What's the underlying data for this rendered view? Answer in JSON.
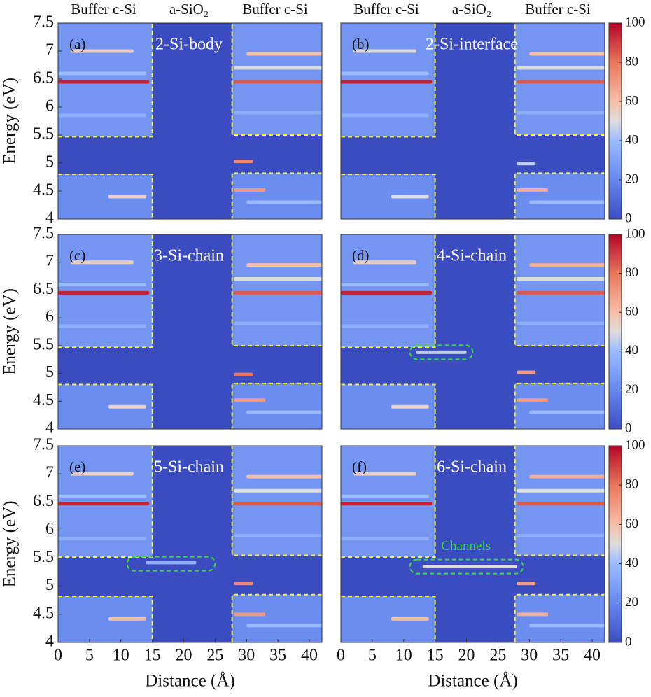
{
  "colormap": [
    [
      0,
      "#3b4cc0"
    ],
    [
      20,
      "#6788ee"
    ],
    [
      40,
      "#9abbff"
    ],
    [
      50,
      "#dddcdc"
    ],
    [
      60,
      "#f6bfa6"
    ],
    [
      80,
      "#e8765c"
    ],
    [
      100,
      "#b40426"
    ]
  ],
  "chart_data": [
    {
      "type": "heatmap",
      "title": "2-Si-body",
      "panel_label": "(a)",
      "top_labels": [
        "Buffer c-Si",
        "a-SiO₂",
        "Buffer c-Si"
      ],
      "ylabel": "Energy (eV)",
      "xlim": [
        0,
        42
      ],
      "ylim": [
        4,
        7.5
      ],
      "yticks": [
        4,
        4.5,
        5,
        5.5,
        6,
        6.5,
        7,
        7.5
      ],
      "background": 0,
      "regions": [
        [
          0,
          15,
          5.47,
          7.5,
          25
        ],
        [
          0,
          15,
          4,
          4.8,
          22
        ],
        [
          27.7,
          42,
          5.5,
          7.5,
          25
        ],
        [
          27.7,
          42,
          4,
          4.82,
          22
        ]
      ],
      "streaks": [
        [
          0,
          14.5,
          6.45,
          95
        ],
        [
          28,
          42,
          6.45,
          85
        ],
        [
          2,
          12,
          7.0,
          55
        ],
        [
          30,
          42,
          6.95,
          60
        ],
        [
          0,
          14,
          6.6,
          40
        ],
        [
          28,
          42,
          6.7,
          50
        ],
        [
          0,
          14,
          5.85,
          35
        ],
        [
          28,
          42,
          5.9,
          35
        ],
        [
          28,
          31,
          5.03,
          75
        ],
        [
          28,
          33,
          4.52,
          70
        ],
        [
          8,
          14,
          4.4,
          55
        ],
        [
          30,
          42,
          4.3,
          40
        ]
      ],
      "dashed_lines": [
        {
          "x": [
            0,
            15,
            15
          ],
          "y": [
            5.47,
            5.47,
            7.5
          ]
        },
        {
          "x": [
            0,
            15,
            15
          ],
          "y": [
            4.8,
            4.8,
            4
          ]
        },
        {
          "x": [
            42,
            27.7,
            27.7
          ],
          "y": [
            5.5,
            5.5,
            7.5
          ]
        },
        {
          "x": [
            42,
            27.7,
            27.7
          ],
          "y": [
            4.82,
            4.82,
            4
          ]
        }
      ]
    },
    {
      "type": "heatmap",
      "title": "2-Si-interface",
      "panel_label": "(b)",
      "top_labels": [
        "Buffer c-Si",
        "a-SiO₂",
        "Buffer c-Si"
      ],
      "xlim": [
        0,
        42
      ],
      "ylim": [
        4,
        7.5
      ],
      "background": 0,
      "clim": [
        0,
        100
      ],
      "cticks": [
        0,
        20,
        40,
        60,
        80,
        100
      ],
      "regions": [
        [
          0,
          15,
          5.47,
          7.5,
          25
        ],
        [
          0,
          15,
          4,
          4.8,
          22
        ],
        [
          27.7,
          42,
          5.5,
          7.5,
          25
        ],
        [
          27.7,
          42,
          4,
          4.82,
          22
        ]
      ],
      "streaks": [
        [
          0,
          14.5,
          6.45,
          95
        ],
        [
          28,
          42,
          6.45,
          85
        ],
        [
          2,
          12,
          7.0,
          50
        ],
        [
          30,
          42,
          6.95,
          60
        ],
        [
          0,
          14,
          6.6,
          40
        ],
        [
          28,
          42,
          6.7,
          50
        ],
        [
          0,
          14,
          5.85,
          35
        ],
        [
          28,
          42,
          5.9,
          35
        ],
        [
          28,
          31,
          4.99,
          45
        ],
        [
          28,
          33,
          4.52,
          65
        ],
        [
          8,
          14,
          4.4,
          50
        ],
        [
          30,
          42,
          4.3,
          40
        ]
      ],
      "dashed_lines": [
        {
          "x": [
            0,
            15,
            15
          ],
          "y": [
            5.47,
            5.47,
            7.5
          ]
        },
        {
          "x": [
            0,
            15,
            15
          ],
          "y": [
            4.8,
            4.8,
            4
          ]
        },
        {
          "x": [
            42,
            27.7,
            27.7
          ],
          "y": [
            5.5,
            5.5,
            7.5
          ]
        },
        {
          "x": [
            42,
            27.7,
            27.7
          ],
          "y": [
            4.82,
            4.82,
            4
          ]
        }
      ]
    },
    {
      "type": "heatmap",
      "title": "3-Si-chain",
      "panel_label": "(c)",
      "ylabel": "Energy (eV)",
      "xlim": [
        0,
        42
      ],
      "ylim": [
        4,
        7.5
      ],
      "yticks": [
        4,
        4.5,
        5,
        5.5,
        6,
        6.5,
        7,
        7.5
      ],
      "background": 0,
      "regions": [
        [
          0,
          15,
          5.47,
          7.5,
          25
        ],
        [
          0,
          15,
          4,
          4.8,
          22
        ],
        [
          27.7,
          42,
          5.5,
          7.5,
          25
        ],
        [
          27.7,
          42,
          4,
          4.82,
          22
        ]
      ],
      "streaks": [
        [
          0,
          14.5,
          6.45,
          95
        ],
        [
          28,
          42,
          6.45,
          85
        ],
        [
          2,
          12,
          7.0,
          55
        ],
        [
          30,
          42,
          6.95,
          60
        ],
        [
          0,
          14,
          6.6,
          40
        ],
        [
          28,
          42,
          6.7,
          50
        ],
        [
          0,
          14,
          5.85,
          35
        ],
        [
          28,
          42,
          5.9,
          35
        ],
        [
          28,
          31,
          4.98,
          80
        ],
        [
          28,
          33,
          4.52,
          70
        ],
        [
          8,
          14,
          4.4,
          55
        ],
        [
          30,
          42,
          4.3,
          40
        ]
      ],
      "dashed_lines": [
        {
          "x": [
            0,
            15,
            15
          ],
          "y": [
            5.47,
            5.47,
            7.5
          ]
        },
        {
          "x": [
            0,
            15,
            15
          ],
          "y": [
            4.8,
            4.8,
            4
          ]
        },
        {
          "x": [
            42,
            27.7,
            27.7
          ],
          "y": [
            5.5,
            5.5,
            7.5
          ]
        },
        {
          "x": [
            42,
            27.7,
            27.7
          ],
          "y": [
            4.82,
            4.82,
            4
          ]
        }
      ]
    },
    {
      "type": "heatmap",
      "title": "4-Si-chain",
      "panel_label": "(d)",
      "xlim": [
        0,
        42
      ],
      "ylim": [
        4,
        7.5
      ],
      "background": 0,
      "clim": [
        0,
        100
      ],
      "cticks": [
        0,
        20,
        40,
        60,
        80,
        100
      ],
      "regions": [
        [
          0,
          15,
          5.47,
          7.5,
          25
        ],
        [
          0,
          15,
          4,
          4.8,
          22
        ],
        [
          27.7,
          42,
          5.5,
          7.5,
          25
        ],
        [
          27.7,
          42,
          4,
          4.82,
          22
        ]
      ],
      "streaks": [
        [
          0,
          14.5,
          6.45,
          95
        ],
        [
          28,
          42,
          6.45,
          85
        ],
        [
          2,
          12,
          7.0,
          55
        ],
        [
          30,
          42,
          6.95,
          65
        ],
        [
          0,
          14,
          6.6,
          40
        ],
        [
          28,
          42,
          6.7,
          50
        ],
        [
          0,
          14,
          5.85,
          35
        ],
        [
          28,
          42,
          5.9,
          35
        ],
        [
          28,
          31,
          5.02,
          70
        ],
        [
          28,
          33,
          4.52,
          70
        ],
        [
          8,
          14,
          4.4,
          55
        ],
        [
          30,
          42,
          4.3,
          40
        ],
        [
          12,
          20,
          5.38,
          45
        ]
      ],
      "highlights": [
        [
          11,
          21,
          5.38
        ]
      ],
      "dashed_lines": [
        {
          "x": [
            0,
            15,
            15
          ],
          "y": [
            5.47,
            5.47,
            7.5
          ]
        },
        {
          "x": [
            0,
            15,
            15
          ],
          "y": [
            4.8,
            4.8,
            4
          ]
        },
        {
          "x": [
            42,
            27.7,
            27.7
          ],
          "y": [
            5.5,
            5.5,
            7.5
          ]
        },
        {
          "x": [
            42,
            27.7,
            27.7
          ],
          "y": [
            4.82,
            4.82,
            4
          ]
        }
      ]
    },
    {
      "type": "heatmap",
      "title": "5-Si-chain",
      "panel_label": "(e)",
      "ylabel": "Energy (eV)",
      "xlabel": "Distance (Å)",
      "xlim": [
        0,
        42
      ],
      "ylim": [
        4,
        7.5
      ],
      "yticks": [
        4,
        4.5,
        5,
        5.5,
        6,
        6.5,
        7,
        7.5
      ],
      "xticks": [
        0,
        5,
        10,
        15,
        20,
        25,
        30,
        35,
        40
      ],
      "background": 0,
      "regions": [
        [
          0,
          15,
          5.52,
          7.5,
          25
        ],
        [
          0,
          15,
          4,
          4.82,
          22
        ],
        [
          27.7,
          42,
          5.55,
          7.5,
          25
        ],
        [
          27.7,
          42,
          4,
          4.85,
          22
        ]
      ],
      "streaks": [
        [
          0,
          14.5,
          6.47,
          95
        ],
        [
          28,
          42,
          6.47,
          85
        ],
        [
          2,
          12,
          7.0,
          55
        ],
        [
          30,
          42,
          6.95,
          60
        ],
        [
          0,
          14,
          6.6,
          40
        ],
        [
          28,
          42,
          6.7,
          50
        ],
        [
          0,
          14,
          5.85,
          35
        ],
        [
          28,
          42,
          5.9,
          35
        ],
        [
          28,
          31,
          5.05,
          75
        ],
        [
          28,
          33,
          4.5,
          70
        ],
        [
          8,
          14,
          4.42,
          60
        ],
        [
          30,
          42,
          4.3,
          40
        ],
        [
          14,
          22,
          5.42,
          35
        ]
      ],
      "highlights": [
        [
          11,
          25,
          5.4
        ]
      ],
      "dashed_lines": [
        {
          "x": [
            0,
            15,
            15
          ],
          "y": [
            5.52,
            5.52,
            7.5
          ]
        },
        {
          "x": [
            0,
            15,
            15
          ],
          "y": [
            4.82,
            4.82,
            4
          ]
        },
        {
          "x": [
            42,
            27.7,
            27.7
          ],
          "y": [
            5.55,
            5.55,
            7.5
          ]
        },
        {
          "x": [
            42,
            27.7,
            27.7
          ],
          "y": [
            4.85,
            4.85,
            4
          ]
        }
      ]
    },
    {
      "type": "heatmap",
      "title": "6-Si-chain",
      "panel_label": "(f)",
      "xlabel": "Distance (Å)",
      "annotation": "Channels",
      "xlim": [
        0,
        42
      ],
      "ylim": [
        4,
        7.5
      ],
      "xticks": [
        0,
        5,
        10,
        15,
        20,
        25,
        30,
        35,
        40
      ],
      "background": 0,
      "clim": [
        0,
        100
      ],
      "cticks": [
        0,
        20,
        40,
        60,
        80,
        100
      ],
      "regions": [
        [
          0,
          15,
          5.52,
          7.5,
          25
        ],
        [
          0,
          15,
          4,
          4.82,
          22
        ],
        [
          27.7,
          42,
          5.55,
          7.5,
          25
        ],
        [
          27.7,
          42,
          4,
          4.85,
          22
        ]
      ],
      "streaks": [
        [
          0,
          14.5,
          6.47,
          95
        ],
        [
          28,
          42,
          6.47,
          85
        ],
        [
          2,
          12,
          7.0,
          55
        ],
        [
          30,
          42,
          6.95,
          65
        ],
        [
          0,
          14,
          6.6,
          40
        ],
        [
          28,
          42,
          6.7,
          50
        ],
        [
          0,
          14,
          5.85,
          35
        ],
        [
          28,
          42,
          5.9,
          35
        ],
        [
          28,
          31,
          5.05,
          70
        ],
        [
          28,
          33,
          4.5,
          65
        ],
        [
          8,
          14,
          4.42,
          60
        ],
        [
          30,
          42,
          4.3,
          40
        ],
        [
          13,
          28,
          5.35,
          50
        ]
      ],
      "highlights": [
        [
          11,
          29,
          5.35
        ]
      ],
      "dashed_lines": [
        {
          "x": [
            0,
            15,
            15
          ],
          "y": [
            5.52,
            5.52,
            7.5
          ]
        },
        {
          "x": [
            0,
            15,
            15
          ],
          "y": [
            4.82,
            4.82,
            4
          ]
        },
        {
          "x": [
            42,
            27.7,
            27.7
          ],
          "y": [
            5.55,
            5.55,
            7.5
          ]
        },
        {
          "x": [
            42,
            27.7,
            27.7
          ],
          "y": [
            4.85,
            4.85,
            4
          ]
        }
      ]
    }
  ]
}
